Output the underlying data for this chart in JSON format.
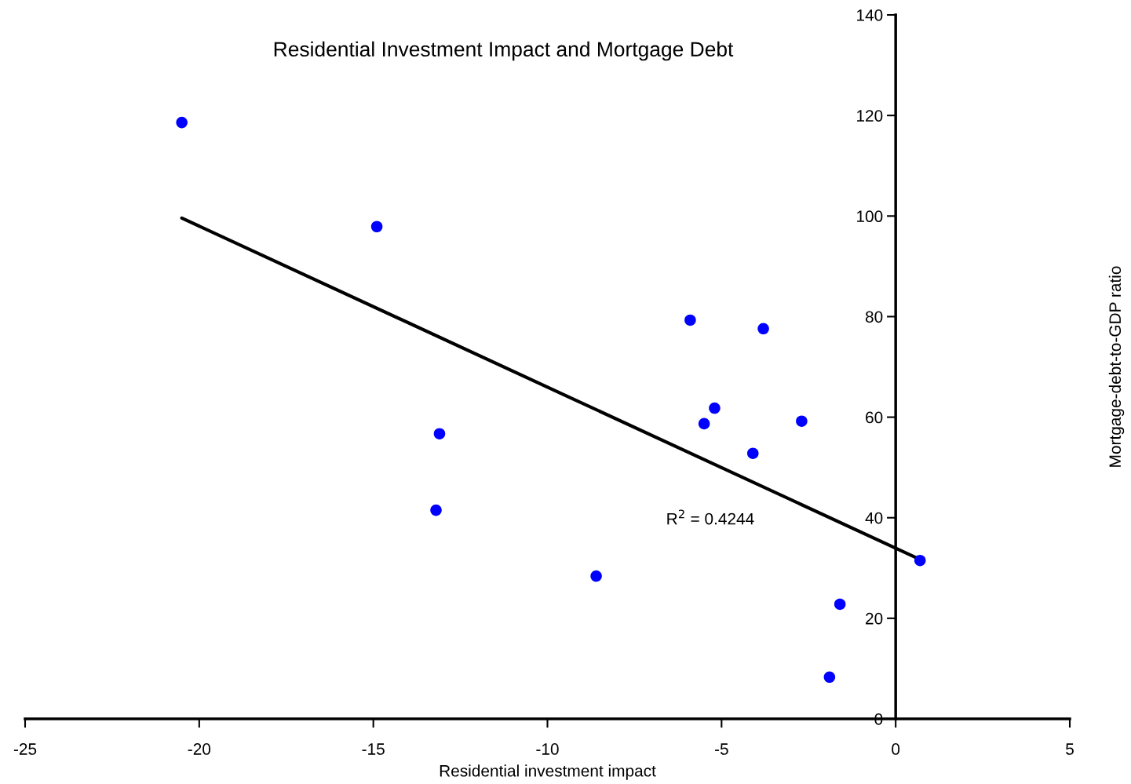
{
  "chart_data": {
    "type": "scatter",
    "title": "Residential Investment Impact and Mortgage Debt",
    "xlabel": "Residential investment impact",
    "ylabel": "Mortgage-debt-to-GDP ratio",
    "series": [
      {
        "color": "#0000ff",
        "marker": "circle",
        "x": [
          -20.5,
          -14.9,
          -5.9,
          -3.8,
          -5.2,
          -5.5,
          -2.7,
          -4.1,
          -13.1,
          -13.2,
          -8.6,
          0.7,
          -1.6,
          -1.9
        ],
        "values": [
          118.6,
          97.9,
          79.3,
          77.6,
          61.8,
          58.7,
          59.2,
          52.8,
          56.7,
          41.5,
          28.4,
          31.5,
          22.8,
          8.3
        ]
      },
      {
        "type": "line",
        "color": "#000000",
        "x": [
          -20.5,
          0.7
        ],
        "values": [
          99.6,
          31.7
        ]
      }
    ],
    "annotations": [
      "R$^{2}$ = 0.4244"
    ],
    "xlim": [
      -25,
      5
    ],
    "xticks": [
      -25,
      -20,
      -15,
      -10,
      -5,
      0,
      5
    ],
    "ylim": [
      0,
      140
    ],
    "yticks": [
      0,
      20,
      40,
      60,
      80,
      100,
      120,
      140
    ],
    "grid": false
  }
}
